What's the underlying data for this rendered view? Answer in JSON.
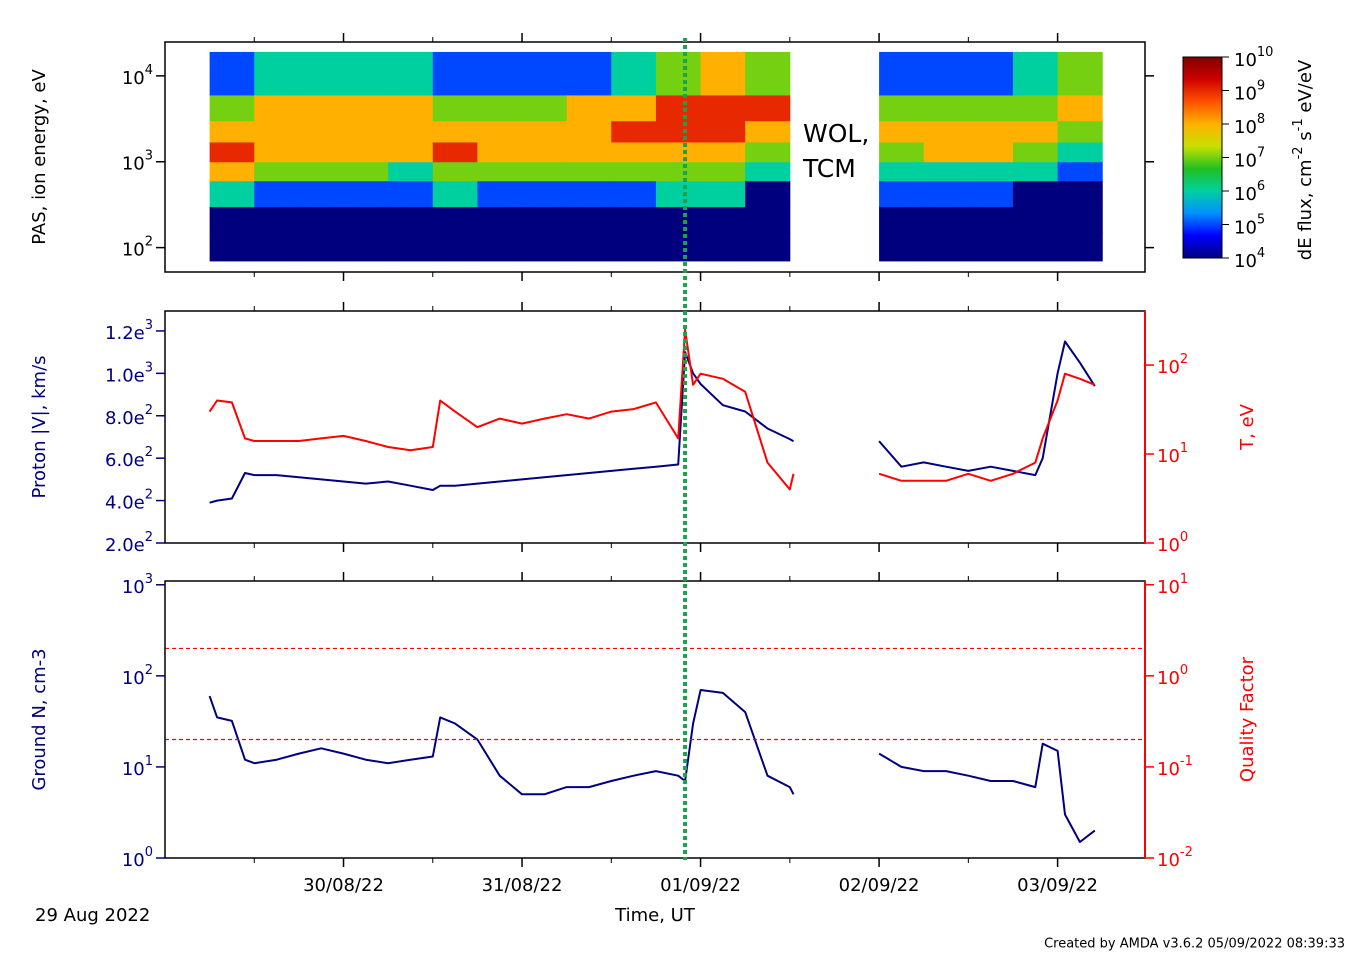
{
  "time_axis": {
    "xlim": [
      "2022-08-29T00:00",
      "2022-09-03T11:45"
    ],
    "xticks": [
      {
        "value": "2022-08-30T00:00",
        "label": "30/08/22"
      },
      {
        "value": "2022-08-31T00:00",
        "label": "31/08/22"
      },
      {
        "value": "2022-09-01T00:00",
        "label": "01/09/22"
      },
      {
        "value": "2022-09-02T00:00",
        "label": "02/09/22"
      },
      {
        "value": "2022-09-03T00:00",
        "label": "03/09/22"
      }
    ],
    "xminor": [
      "2022-08-29T12:00",
      "2022-08-30T12:00",
      "2022-08-31T12:00",
      "2022-09-01T12:00",
      "2022-09-02T12:00"
    ],
    "xlabel": "Time, UT",
    "start_label": "29 Aug 2022"
  },
  "event_line": {
    "x": "2022-08-31T21:55",
    "color": "#1aa34a"
  },
  "footer": "Created by AMDA v3.6.2 05/09/2022 08:39:33",
  "chart_data": [
    {
      "type": "heatmap",
      "ylabel": "PAS, ion energy, eV",
      "ycolor": "#000000",
      "ylog": true,
      "ylim": [
        52,
        24800
      ],
      "yticks": [
        {
          "value": 100,
          "label": "10",
          "exponent": "2"
        },
        {
          "value": 1000,
          "label": "10",
          "exponent": "3"
        },
        {
          "value": 10000,
          "label": "10",
          "exponent": "4"
        }
      ],
      "x_edges": [
        "2022-08-29T06:00",
        "2022-08-29T12:00",
        "2022-08-29T18:00",
        "2022-08-30T00:00",
        "2022-08-30T06:00",
        "2022-08-30T12:00",
        "2022-08-30T18:00",
        "2022-08-31T00:00",
        "2022-08-31T06:00",
        "2022-08-31T12:00",
        "2022-08-31T18:00",
        "2022-09-01T00:00",
        "2022-09-01T06:00",
        "2022-09-01T12:00",
        "2022-09-01T18:00",
        "2022-09-02T00:00",
        "2022-09-02T06:00",
        "2022-09-02T12:00",
        "2022-09-02T18:00",
        "2022-09-03T00:00",
        "2022-09-03T06:00"
      ],
      "energy_edges": [
        70,
        150,
        300,
        600,
        1000,
        1700,
        3000,
        6000,
        19000
      ],
      "values": [
        [
          10000.0,
          10000.0,
          1000000.0,
          100000000.0,
          1000000000.0,
          100000000.0,
          10000000.0,
          100000.0
        ],
        [
          10000.0,
          10000.0,
          100000.0,
          10000000.0,
          100000000.0,
          100000000.0,
          100000000.0,
          1000000.0
        ],
        [
          10000.0,
          10000.0,
          100000.0,
          10000000.0,
          100000000.0,
          100000000.0,
          100000000.0,
          1000000.0
        ],
        [
          10000.0,
          10000.0,
          100000.0,
          10000000.0,
          100000000.0,
          100000000.0,
          100000000.0,
          1000000.0
        ],
        [
          10000.0,
          10000.0,
          100000.0,
          1000000.0,
          100000000.0,
          100000000.0,
          100000000.0,
          1000000.0
        ],
        [
          10000.0,
          10000.0,
          1000000.0,
          10000000.0,
          1000000000.0,
          100000000.0,
          10000000.0,
          100000.0
        ],
        [
          10000.0,
          10000.0,
          100000.0,
          10000000.0,
          100000000.0,
          100000000.0,
          10000000.0,
          100000.0
        ],
        [
          10000.0,
          10000.0,
          100000.0,
          10000000.0,
          100000000.0,
          100000000.0,
          10000000.0,
          100000.0
        ],
        [
          10000.0,
          10000.0,
          100000.0,
          10000000.0,
          100000000.0,
          100000000.0,
          100000000.0,
          100000.0
        ],
        [
          10000.0,
          10000.0,
          100000.0,
          10000000.0,
          100000000.0,
          1000000000.0,
          100000000.0,
          1000000.0
        ],
        [
          10000.0,
          10000.0,
          1000000.0,
          10000000.0,
          100000000.0,
          1000000000.0,
          1000000000.0,
          10000000.0
        ],
        [
          10000.0,
          10000.0,
          1000000.0,
          10000000.0,
          100000000.0,
          1000000000.0,
          1000000000.0,
          100000000.0
        ],
        [
          10000.0,
          10000.0,
          10000.0,
          1000000.0,
          10000000.0,
          100000000.0,
          1000000000.0,
          10000000.0
        ],
        null,
        null,
        [
          10000.0,
          10000.0,
          100000.0,
          1000000.0,
          10000000.0,
          100000000.0,
          10000000.0,
          100000.0
        ],
        [
          10000.0,
          10000.0,
          100000.0,
          1000000.0,
          100000000.0,
          100000000.0,
          10000000.0,
          100000.0
        ],
        [
          10000.0,
          10000.0,
          100000.0,
          1000000.0,
          100000000.0,
          100000000.0,
          10000000.0,
          100000.0
        ],
        [
          10000.0,
          10000.0,
          10000.0,
          1000000.0,
          10000000.0,
          100000000.0,
          10000000.0,
          1000000.0
        ],
        [
          10000.0,
          10000.0,
          10000.0,
          100000.0,
          1000000.0,
          10000000.0,
          100000000.0,
          10000000.0
        ]
      ],
      "colormap": [
        "#00007f",
        "#0000ff",
        "#0090ff",
        "#00d0a0",
        "#20c020",
        "#c8e000",
        "#ffb000",
        "#ff5000",
        "#d00000",
        "#800000"
      ],
      "clim": [
        10000,
        10000000000
      ],
      "cticks": [
        {
          "value": 10000,
          "label": "10",
          "exponent": "4"
        },
        {
          "value": 100000,
          "label": "10",
          "exponent": "5"
        },
        {
          "value": 1000000,
          "label": "10",
          "exponent": "6"
        },
        {
          "value": 10000000,
          "label": "10",
          "exponent": "7"
        },
        {
          "value": 100000000,
          "label": "10",
          "exponent": "8"
        },
        {
          "value": 1000000000,
          "label": "10",
          "exponent": "9"
        },
        {
          "value": 10000000000,
          "label": "10",
          "exponent": "10"
        }
      ],
      "colorbar_label": [
        "dE flux, cm",
        "-2",
        " s",
        "-1",
        " eV/eV"
      ],
      "annotation": [
        "WOL,",
        "TCM"
      ]
    },
    {
      "type": "line",
      "ylabel": "Proton |V|, km/s",
      "ycolor": "#000080",
      "y2label": "T, eV",
      "y2color": "#ff0000",
      "ylim": [
        200,
        1294
      ],
      "yticks": [
        {
          "value": 200,
          "label": "2.0e",
          "exponent": "2"
        },
        {
          "value": 400,
          "label": "4.0e",
          "exponent": "2"
        },
        {
          "value": 600,
          "label": "6.0e",
          "exponent": "2"
        },
        {
          "value": 800,
          "label": "8.0e",
          "exponent": "2"
        },
        {
          "value": 1000,
          "label": "1.0e",
          "exponent": "3"
        },
        {
          "value": 1200,
          "label": "1.2e",
          "exponent": "3"
        }
      ],
      "y2log": true,
      "y2lim": [
        1,
        405
      ],
      "y2ticks": [
        {
          "value": 1,
          "label": "10",
          "exponent": "0"
        },
        {
          "value": 10,
          "label": "10",
          "exponent": "1"
        },
        {
          "value": 100,
          "label": "10",
          "exponent": "2"
        }
      ],
      "x": [
        "2022-08-29T06:00",
        "2022-08-29T07:00",
        "2022-08-29T09:00",
        "2022-08-29T10:45",
        "2022-08-29T12:00",
        "2022-08-29T15:00",
        "2022-08-29T18:00",
        "2022-08-29T21:00",
        "2022-08-30T00:00",
        "2022-08-30T03:00",
        "2022-08-30T06:00",
        "2022-08-30T09:00",
        "2022-08-30T12:00",
        "2022-08-30T13:00",
        "2022-08-30T15:00",
        "2022-08-30T18:00",
        "2022-08-30T21:00",
        "2022-08-31T00:00",
        "2022-08-31T03:00",
        "2022-08-31T06:00",
        "2022-08-31T09:00",
        "2022-08-31T12:00",
        "2022-08-31T15:00",
        "2022-08-31T18:00",
        "2022-08-31T21:00",
        "2022-08-31T21:55",
        "2022-08-31T23:00",
        "2022-09-01T00:00",
        "2022-09-01T03:00",
        "2022-09-01T06:00",
        "2022-09-01T09:00",
        "2022-09-01T12:00",
        "2022-09-01T12:30",
        "2022-09-01T18:00",
        "2022-09-02T00:00",
        "2022-09-02T03:00",
        "2022-09-02T06:00",
        "2022-09-02T09:00",
        "2022-09-02T12:00",
        "2022-09-02T15:00",
        "2022-09-02T18:00",
        "2022-09-02T21:00",
        "2022-09-02T22:00",
        "2022-09-03T00:00",
        "2022-09-03T01:00",
        "2022-09-03T03:00",
        "2022-09-03T05:00"
      ],
      "series": [
        {
          "color": "#000080",
          "values": [
            390,
            400,
            410,
            530,
            520,
            520,
            510,
            500,
            490,
            480,
            490,
            470,
            450,
            470,
            470,
            480,
            490,
            500,
            510,
            520,
            530,
            540,
            550,
            560,
            570,
            1100,
            1000,
            950,
            850,
            820,
            740,
            690,
            680,
            null,
            680,
            560,
            580,
            560,
            540,
            560,
            540,
            520,
            600,
            1000,
            1150,
            1050,
            940
          ]
        },
        {
          "color": "#ff0000",
          "axis": "y2",
          "values": [
            30,
            40,
            38,
            15,
            14,
            14,
            14,
            15,
            16,
            14,
            12,
            11,
            12,
            40,
            30,
            20,
            25,
            22,
            25,
            28,
            25,
            30,
            32,
            38,
            15,
            250,
            60,
            80,
            70,
            50,
            8,
            4,
            6,
            null,
            6,
            5,
            5,
            5,
            6,
            5,
            6,
            8,
            15,
            40,
            80,
            70,
            60
          ]
        }
      ]
    },
    {
      "type": "line",
      "ylabel": "Ground N, cm-3",
      "ycolor": "#000080",
      "y2label": "Quality Factor",
      "y2color": "#ff0000",
      "ylog": true,
      "ylim": [
        1,
        1100
      ],
      "yticks": [
        {
          "value": 1,
          "label": "10",
          "exponent": "0"
        },
        {
          "value": 10,
          "label": "10",
          "exponent": "1"
        },
        {
          "value": 100,
          "label": "10",
          "exponent": "2"
        },
        {
          "value": 1000,
          "label": "10",
          "exponent": "3"
        }
      ],
      "y2log": true,
      "y2lim": [
        0.01,
        11
      ],
      "y2ticks": [
        {
          "value": 0.01,
          "label": "10",
          "exponent": "-2"
        },
        {
          "value": 0.1,
          "label": "10",
          "exponent": "-1"
        },
        {
          "value": 1,
          "label": "10",
          "exponent": "0"
        },
        {
          "value": 10,
          "label": "10",
          "exponent": "1"
        }
      ],
      "y2_ref": [
        2,
        0.2
      ],
      "ref_color": "#ff0000",
      "x": [
        "2022-08-29T06:00",
        "2022-08-29T07:00",
        "2022-08-29T09:00",
        "2022-08-29T10:45",
        "2022-08-29T12:00",
        "2022-08-29T15:00",
        "2022-08-29T18:00",
        "2022-08-29T21:00",
        "2022-08-30T00:00",
        "2022-08-30T03:00",
        "2022-08-30T06:00",
        "2022-08-30T09:00",
        "2022-08-30T12:00",
        "2022-08-30T13:00",
        "2022-08-30T15:00",
        "2022-08-30T18:00",
        "2022-08-30T21:00",
        "2022-08-31T00:00",
        "2022-08-31T03:00",
        "2022-08-31T06:00",
        "2022-08-31T09:00",
        "2022-08-31T12:00",
        "2022-08-31T15:00",
        "2022-08-31T18:00",
        "2022-08-31T21:00",
        "2022-08-31T21:55",
        "2022-08-31T23:00",
        "2022-09-01T00:00",
        "2022-09-01T03:00",
        "2022-09-01T06:00",
        "2022-09-01T09:00",
        "2022-09-01T12:00",
        "2022-09-01T12:30",
        "2022-09-01T18:00",
        "2022-09-02T00:00",
        "2022-09-02T03:00",
        "2022-09-02T06:00",
        "2022-09-02T09:00",
        "2022-09-02T12:00",
        "2022-09-02T15:00",
        "2022-09-02T18:00",
        "2022-09-02T21:00",
        "2022-09-02T22:00",
        "2022-09-03T00:00",
        "2022-09-03T01:00",
        "2022-09-03T03:00",
        "2022-09-03T05:00"
      ],
      "series": [
        {
          "color": "#000080",
          "values": [
            60,
            35,
            32,
            12,
            11,
            12,
            14,
            16,
            14,
            12,
            11,
            12,
            13,
            35,
            30,
            20,
            8,
            5,
            5,
            6,
            6,
            7,
            8,
            9,
            8,
            7,
            30,
            70,
            65,
            40,
            8,
            6,
            5,
            null,
            14,
            10,
            9,
            9,
            8,
            7,
            7,
            6,
            18,
            15,
            3,
            1.5,
            2
          ]
        }
      ]
    }
  ]
}
